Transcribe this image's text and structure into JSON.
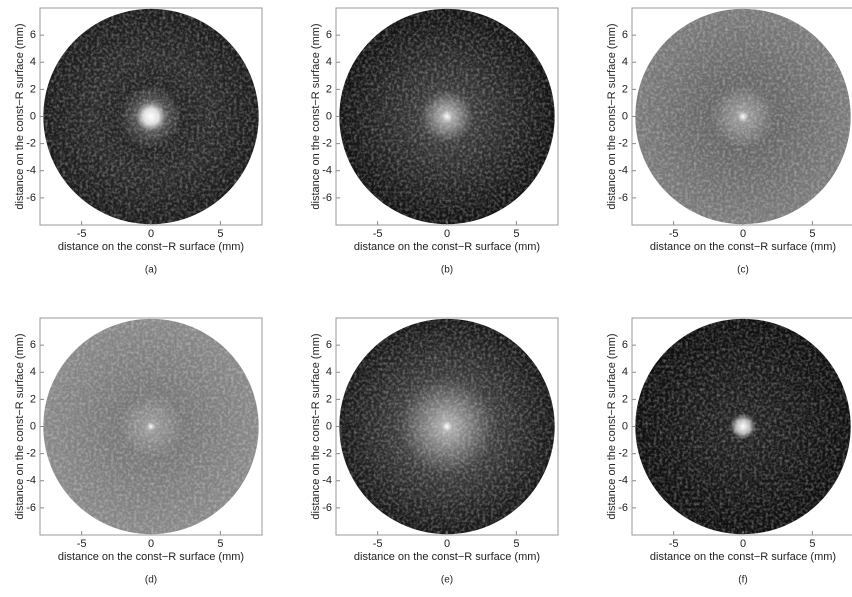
{
  "chart_data": [
    {
      "type": "image",
      "xlabel": "distance on the const−R surface (mm)",
      "ylabel": "distance on the const−R surface (mm)",
      "caption": "(a)",
      "xlim": [
        -8,
        8
      ],
      "ylim": [
        -8,
        8
      ],
      "xticks": [
        -5,
        0,
        5
      ],
      "yticks": [
        -6,
        -4,
        -2,
        0,
        2,
        4,
        6
      ]
    },
    {
      "type": "image",
      "xlabel": "distance on the const−R surface (mm)",
      "ylabel": "distance on the const−R surface (mm)",
      "caption": "(b)",
      "xlim": [
        -8,
        8
      ],
      "ylim": [
        -8,
        8
      ],
      "xticks": [
        -5,
        0,
        5
      ],
      "yticks": [
        -6,
        -4,
        -2,
        0,
        2,
        4,
        6
      ]
    },
    {
      "type": "image",
      "xlabel": "distance on the const−R surface (mm)",
      "ylabel": "distance on the const−R surface (mm)",
      "caption": "(c)",
      "xlim": [
        -8,
        8
      ],
      "ylim": [
        -8,
        8
      ],
      "xticks": [
        -5,
        0,
        5
      ],
      "yticks": [
        -6,
        -4,
        -2,
        0,
        2,
        4,
        6
      ]
    },
    {
      "type": "image",
      "xlabel": "distance on the const−R surface (mm)",
      "ylabel": "distance on the const−R surface (mm)",
      "caption": "(d)",
      "xlim": [
        -8,
        8
      ],
      "ylim": [
        -8,
        8
      ],
      "xticks": [
        -5,
        0,
        5
      ],
      "yticks": [
        -6,
        -4,
        -2,
        0,
        2,
        4,
        6
      ]
    },
    {
      "type": "image",
      "xlabel": "distance on the const−R surface (mm)",
      "ylabel": "distance on the const−R surface (mm)",
      "caption": "(e)",
      "xlim": [
        -8,
        8
      ],
      "ylim": [
        -8,
        8
      ],
      "xticks": [
        -5,
        0,
        5
      ],
      "yticks": [
        -6,
        -4,
        -2,
        0,
        2,
        4,
        6
      ]
    },
    {
      "type": "image",
      "xlabel": "distance on the const−R surface (mm)",
      "ylabel": "distance on the const−R surface (mm)",
      "caption": "(f)",
      "xlim": [
        -8,
        8
      ],
      "ylim": [
        -8,
        8
      ],
      "xticks": [
        -5,
        0,
        5
      ],
      "yticks": [
        -6,
        -4,
        -2,
        0,
        2,
        4,
        6
      ]
    }
  ]
}
